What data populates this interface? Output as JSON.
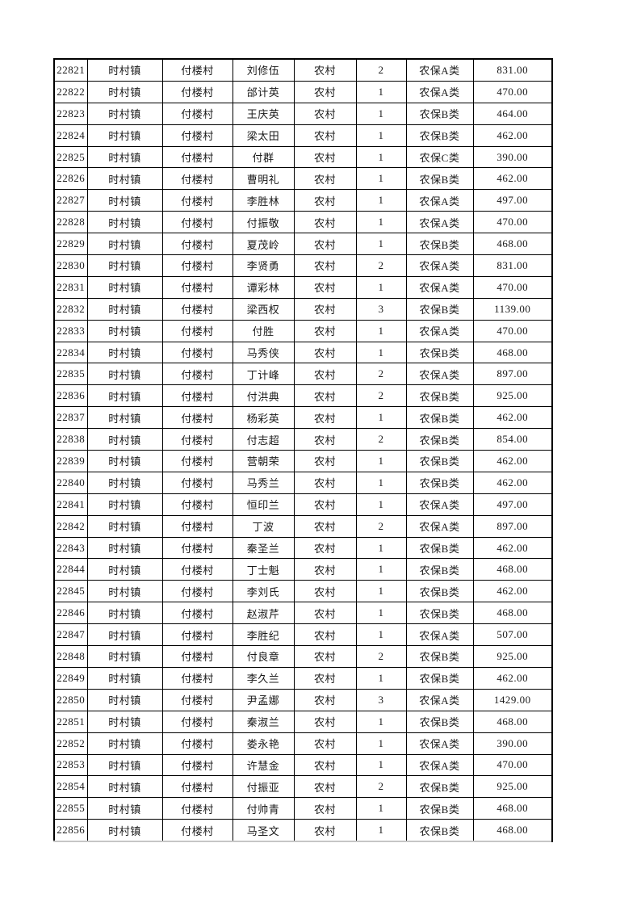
{
  "page": {
    "background": "#ffffff",
    "border_color": "#000000",
    "text_color": "#1a1a1a",
    "cutoff_strip_color": "#c6c6c6"
  },
  "table": {
    "rows": [
      [
        "22821",
        "时村镇",
        "付楼村",
        "刘修伍",
        "农村",
        "2",
        "农保A类",
        "831.00"
      ],
      [
        "22822",
        "时村镇",
        "付楼村",
        "邰计英",
        "农村",
        "1",
        "农保A类",
        "470.00"
      ],
      [
        "22823",
        "时村镇",
        "付楼村",
        "王庆英",
        "农村",
        "1",
        "农保B类",
        "464.00"
      ],
      [
        "22824",
        "时村镇",
        "付楼村",
        "梁太田",
        "农村",
        "1",
        "农保B类",
        "462.00"
      ],
      [
        "22825",
        "时村镇",
        "付楼村",
        "付群",
        "农村",
        "1",
        "农保C类",
        "390.00"
      ],
      [
        "22826",
        "时村镇",
        "付楼村",
        "曹明礼",
        "农村",
        "1",
        "农保B类",
        "462.00"
      ],
      [
        "22827",
        "时村镇",
        "付楼村",
        "李胜林",
        "农村",
        "1",
        "农保A类",
        "497.00"
      ],
      [
        "22828",
        "时村镇",
        "付楼村",
        "付振敬",
        "农村",
        "1",
        "农保A类",
        "470.00"
      ],
      [
        "22829",
        "时村镇",
        "付楼村",
        "夏茂岭",
        "农村",
        "1",
        "农保B类",
        "468.00"
      ],
      [
        "22830",
        "时村镇",
        "付楼村",
        "李贤勇",
        "农村",
        "2",
        "农保A类",
        "831.00"
      ],
      [
        "22831",
        "时村镇",
        "付楼村",
        "谭彩林",
        "农村",
        "1",
        "农保A类",
        "470.00"
      ],
      [
        "22832",
        "时村镇",
        "付楼村",
        "梁西权",
        "农村",
        "3",
        "农保B类",
        "1139.00"
      ],
      [
        "22833",
        "时村镇",
        "付楼村",
        "付胜",
        "农村",
        "1",
        "农保A类",
        "470.00"
      ],
      [
        "22834",
        "时村镇",
        "付楼村",
        "马秀侠",
        "农村",
        "1",
        "农保B类",
        "468.00"
      ],
      [
        "22835",
        "时村镇",
        "付楼村",
        "丁计峰",
        "农村",
        "2",
        "农保A类",
        "897.00"
      ],
      [
        "22836",
        "时村镇",
        "付楼村",
        "付洪典",
        "农村",
        "2",
        "农保B类",
        "925.00"
      ],
      [
        "22837",
        "时村镇",
        "付楼村",
        "杨彩英",
        "农村",
        "1",
        "农保B类",
        "462.00"
      ],
      [
        "22838",
        "时村镇",
        "付楼村",
        "付志超",
        "农村",
        "2",
        "农保B类",
        "854.00"
      ],
      [
        "22839",
        "时村镇",
        "付楼村",
        "营朝荣",
        "农村",
        "1",
        "农保B类",
        "462.00"
      ],
      [
        "22840",
        "时村镇",
        "付楼村",
        "马秀兰",
        "农村",
        "1",
        "农保B类",
        "462.00"
      ],
      [
        "22841",
        "时村镇",
        "付楼村",
        "恒印兰",
        "农村",
        "1",
        "农保A类",
        "497.00"
      ],
      [
        "22842",
        "时村镇",
        "付楼村",
        "丁波",
        "农村",
        "2",
        "农保A类",
        "897.00"
      ],
      [
        "22843",
        "时村镇",
        "付楼村",
        "秦圣兰",
        "农村",
        "1",
        "农保B类",
        "462.00"
      ],
      [
        "22844",
        "时村镇",
        "付楼村",
        "丁士魁",
        "农村",
        "1",
        "农保B类",
        "468.00"
      ],
      [
        "22845",
        "时村镇",
        "付楼村",
        "李刘氏",
        "农村",
        "1",
        "农保B类",
        "462.00"
      ],
      [
        "22846",
        "时村镇",
        "付楼村",
        "赵淑芹",
        "农村",
        "1",
        "农保B类",
        "468.00"
      ],
      [
        "22847",
        "时村镇",
        "付楼村",
        "李胜纪",
        "农村",
        "1",
        "农保A类",
        "507.00"
      ],
      [
        "22848",
        "时村镇",
        "付楼村",
        "付良章",
        "农村",
        "2",
        "农保B类",
        "925.00"
      ],
      [
        "22849",
        "时村镇",
        "付楼村",
        "李久兰",
        "农村",
        "1",
        "农保B类",
        "462.00"
      ],
      [
        "22850",
        "时村镇",
        "付楼村",
        "尹孟娜",
        "农村",
        "3",
        "农保A类",
        "1429.00"
      ],
      [
        "22851",
        "时村镇",
        "付楼村",
        "秦淑兰",
        "农村",
        "1",
        "农保B类",
        "468.00"
      ],
      [
        "22852",
        "时村镇",
        "付楼村",
        "娄永艳",
        "农村",
        "1",
        "农保A类",
        "390.00"
      ],
      [
        "22853",
        "时村镇",
        "付楼村",
        "许慧金",
        "农村",
        "1",
        "农保A类",
        "470.00"
      ],
      [
        "22854",
        "时村镇",
        "付楼村",
        "付振亚",
        "农村",
        "2",
        "农保B类",
        "925.00"
      ],
      [
        "22855",
        "时村镇",
        "付楼村",
        "付帅青",
        "农村",
        "1",
        "农保B类",
        "468.00"
      ],
      [
        "22856",
        "时村镇",
        "付楼村",
        "马圣文",
        "农村",
        "1",
        "农保B类",
        "468.00"
      ]
    ]
  }
}
